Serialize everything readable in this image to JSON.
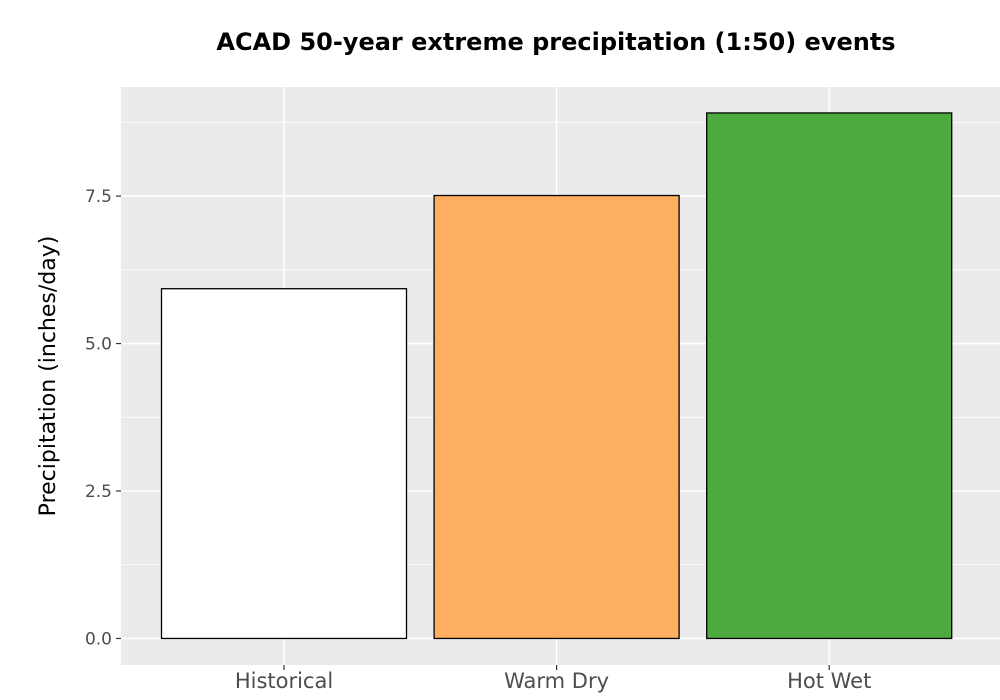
{
  "chart_data": {
    "type": "bar",
    "title": "ACAD 50-year extreme precipitation (1:50) events",
    "xlabel": "",
    "ylabel": "Precipitation (inches/day)",
    "categories": [
      "Historical",
      "Warm Dry",
      "Hot Wet"
    ],
    "values": [
      5.93,
      7.51,
      8.91
    ],
    "colors": [
      "#ffffff",
      "#fdae61",
      "#4daa3e"
    ],
    "ylim": [
      -0.45,
      9.35
    ],
    "yticks": [
      0,
      2.5,
      5,
      7.5
    ],
    "ytick_labels": [
      "0.0",
      "2.5",
      "5.0",
      "7.5"
    ],
    "grid": true,
    "panel_background": "#ebebeb",
    "bar_outline": "#000000"
  }
}
